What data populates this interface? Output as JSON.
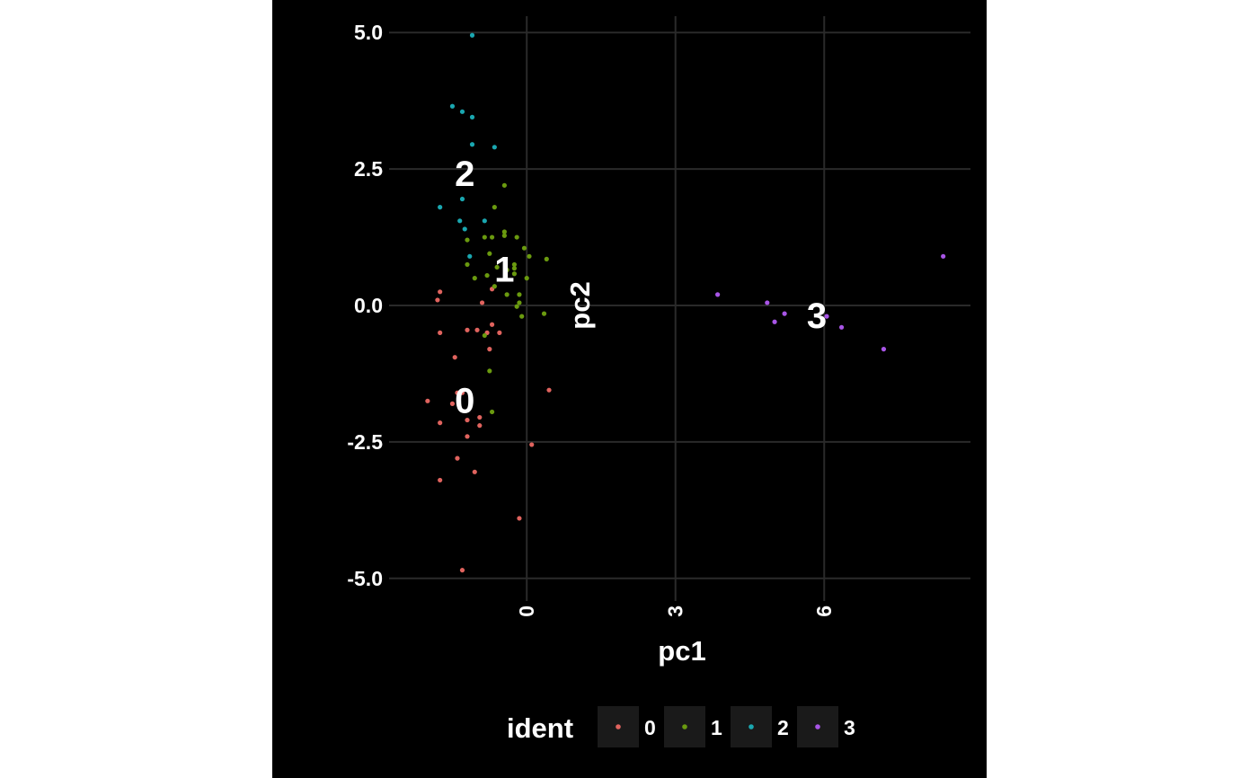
{
  "chart_data": {
    "type": "scatter",
    "xlabel": "pc1",
    "ylabel": "pc2",
    "xlim": [
      -2.65,
      8.95
    ],
    "ylim": [
      -5.3,
      5.3
    ],
    "x_ticks": [
      "0",
      "3",
      "6"
    ],
    "x_tick_values": [
      0,
      3,
      6
    ],
    "y_ticks": [
      "5.0",
      "2.5",
      "0.0",
      "-2.5",
      "-5.0"
    ],
    "y_tick_values": [
      5.0,
      2.5,
      0.0,
      -2.5,
      -5.0
    ],
    "grid": true,
    "legend": {
      "title": "ident",
      "position": "bottom",
      "entries": [
        "0",
        "1",
        "2",
        "3"
      ]
    },
    "colors": {
      "0": "#e0635e",
      "1": "#6a9a0f",
      "2": "#1aa7b0",
      "3": "#a855e6"
    },
    "cluster_labels": [
      {
        "text": "0",
        "x": -1.25,
        "y": -1.75
      },
      {
        "text": "1",
        "x": -0.45,
        "y": 0.65
      },
      {
        "text": "2",
        "x": -1.25,
        "y": 2.4
      },
      {
        "text": "3",
        "x": 5.85,
        "y": -0.2
      }
    ],
    "series": [
      {
        "name": "0",
        "points": [
          [
            -1.75,
            0.25
          ],
          [
            -1.8,
            0.1
          ],
          [
            -1.75,
            -0.5
          ],
          [
            -1.2,
            -0.45
          ],
          [
            -1.0,
            -0.45
          ],
          [
            -0.8,
            -0.5
          ],
          [
            -0.55,
            -0.5
          ],
          [
            -0.7,
            -0.35
          ],
          [
            -0.75,
            -0.8
          ],
          [
            -0.9,
            0.05
          ],
          [
            -1.45,
            -0.95
          ],
          [
            -2.0,
            -1.75
          ],
          [
            -1.5,
            -1.8
          ],
          [
            -1.4,
            -1.6
          ],
          [
            -1.3,
            -1.6
          ],
          [
            -1.75,
            -2.15
          ],
          [
            -1.2,
            -2.1
          ],
          [
            -0.95,
            -2.05
          ],
          [
            -0.95,
            -2.2
          ],
          [
            -1.2,
            -2.4
          ],
          [
            -1.4,
            -2.8
          ],
          [
            -1.05,
            -3.05
          ],
          [
            -1.75,
            -3.2
          ],
          [
            0.45,
            -1.55
          ],
          [
            0.1,
            -2.55
          ],
          [
            -0.15,
            -3.9
          ],
          [
            -1.3,
            -4.85
          ],
          [
            -0.7,
            0.3
          ]
        ]
      },
      {
        "name": "1",
        "points": [
          [
            -0.45,
            2.2
          ],
          [
            -0.65,
            1.8
          ],
          [
            -0.45,
            1.35
          ],
          [
            -0.45,
            1.28
          ],
          [
            -0.7,
            1.25
          ],
          [
            -0.85,
            1.25
          ],
          [
            -0.2,
            1.25
          ],
          [
            -0.05,
            1.05
          ],
          [
            0.05,
            0.9
          ],
          [
            0.4,
            0.85
          ],
          [
            -0.25,
            0.75
          ],
          [
            -0.25,
            0.68
          ],
          [
            -0.25,
            0.58
          ],
          [
            -0.4,
            0.65
          ],
          [
            -0.6,
            0.7
          ],
          [
            -0.8,
            0.55
          ],
          [
            -1.05,
            0.5
          ],
          [
            0.0,
            0.5
          ],
          [
            -1.2,
            0.75
          ],
          [
            -0.65,
            0.35
          ],
          [
            -0.4,
            0.2
          ],
          [
            -0.15,
            0.2
          ],
          [
            -0.15,
            0.05
          ],
          [
            -0.2,
            -0.02
          ],
          [
            -0.1,
            -0.2
          ],
          [
            0.35,
            -0.15
          ],
          [
            -0.85,
            -0.55
          ],
          [
            -0.75,
            -1.2
          ],
          [
            -0.7,
            -1.95
          ],
          [
            -1.2,
            1.2
          ],
          [
            -0.75,
            0.95
          ]
        ]
      },
      {
        "name": "2",
        "points": [
          [
            -1.1,
            4.95
          ],
          [
            -1.5,
            3.65
          ],
          [
            -1.3,
            3.55
          ],
          [
            -1.1,
            3.45
          ],
          [
            -1.1,
            2.95
          ],
          [
            -0.65,
            2.9
          ],
          [
            -1.3,
            1.95
          ],
          [
            -1.75,
            1.8
          ],
          [
            -0.85,
            1.55
          ],
          [
            -1.35,
            1.55
          ],
          [
            -1.25,
            1.4
          ],
          [
            -1.15,
            0.9
          ]
        ]
      },
      {
        "name": "3",
        "points": [
          [
            3.85,
            0.2
          ],
          [
            4.85,
            0.05
          ],
          [
            5.2,
            -0.15
          ],
          [
            5.0,
            -0.3
          ],
          [
            6.05,
            -0.2
          ],
          [
            6.35,
            -0.4
          ],
          [
            7.2,
            -0.8
          ],
          [
            8.4,
            0.9
          ]
        ]
      }
    ]
  }
}
